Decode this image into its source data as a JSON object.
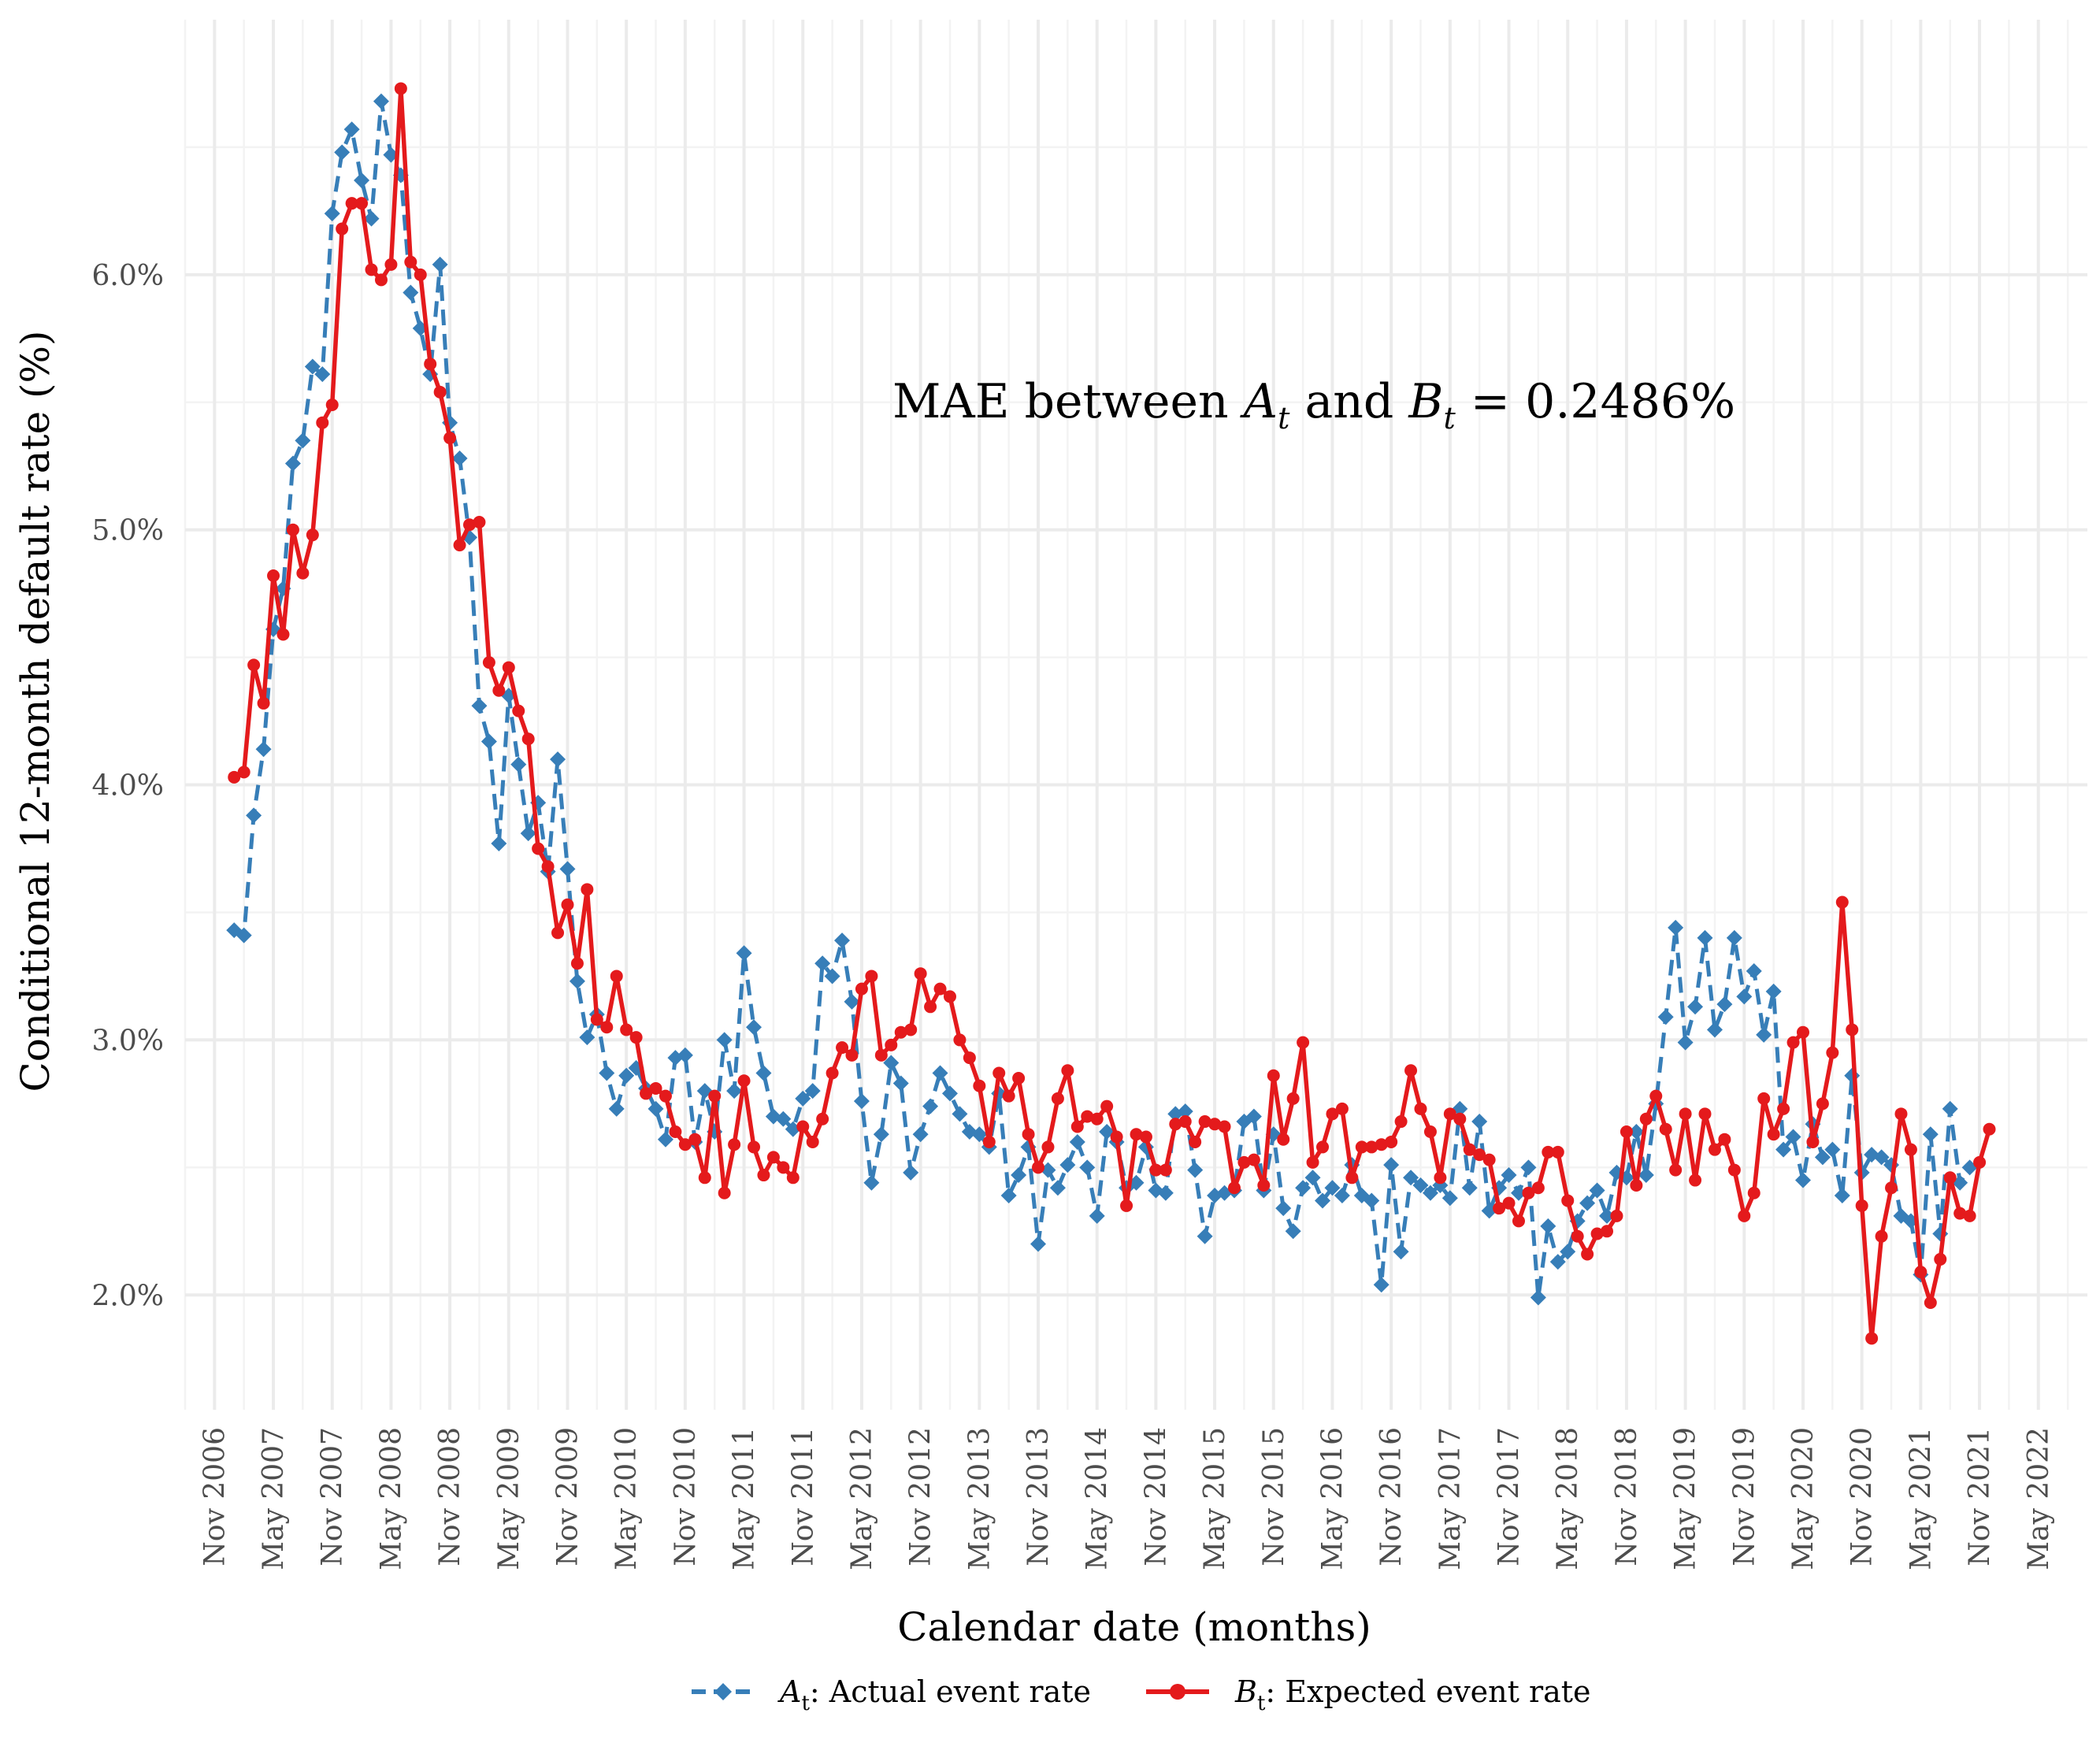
{
  "chart_data": {
    "type": "line",
    "title": "",
    "xlabel": "Calendar date (months)",
    "ylabel": "Conditional 12-month default rate (%)",
    "x_axis": {
      "type": "date",
      "range": [
        "2006-08",
        "2022-10"
      ],
      "tick_labels": [
        "Nov 2006",
        "May 2007",
        "Nov 2007",
        "May 2008",
        "Nov 2008",
        "May 2009",
        "Nov 2009",
        "May 2010",
        "Nov 2010",
        "May 2011",
        "Nov 2011",
        "May 2012",
        "Nov 2012",
        "May 2013",
        "Nov 2013",
        "May 2014",
        "Nov 2014",
        "May 2015",
        "Nov 2015",
        "May 2016",
        "Nov 2016",
        "May 2017",
        "Nov 2017",
        "May 2018",
        "Nov 2018",
        "May 2019",
        "Nov 2019",
        "May 2020",
        "Nov 2020",
        "May 2021",
        "Nov 2021",
        "May 2022"
      ],
      "tick_dates": [
        "2006-11",
        "2007-05",
        "2007-11",
        "2008-05",
        "2008-11",
        "2009-05",
        "2009-11",
        "2010-05",
        "2010-11",
        "2011-05",
        "2011-11",
        "2012-05",
        "2012-11",
        "2013-05",
        "2013-11",
        "2014-05",
        "2014-11",
        "2015-05",
        "2015-11",
        "2016-05",
        "2016-11",
        "2017-05",
        "2017-11",
        "2018-05",
        "2018-11",
        "2019-05",
        "2019-11",
        "2020-05",
        "2020-11",
        "2021-05",
        "2021-11",
        "2022-05"
      ]
    },
    "y_axis": {
      "range": [
        1.55,
        7.0
      ],
      "tick_values": [
        2.0,
        3.0,
        4.0,
        5.0,
        6.0
      ],
      "tick_labels": [
        "2.0%",
        "3.0%",
        "4.0%",
        "5.0%",
        "6.0%"
      ]
    },
    "grid": true,
    "legend_position": "bottom",
    "annotation": {
      "prefix": "MAE between ",
      "sym1": "A",
      "sub1": "t",
      "mid": " and ",
      "sym2": "B",
      "sub2": "t",
      "suffix": " = 0.2486%"
    },
    "start_date": "2007-01",
    "series": [
      {
        "name": "Actual event rate",
        "symbol": "A",
        "subscript": "t",
        "legend_suffix": ": Actual event rate",
        "color": "#377eb8",
        "dash": true,
        "marker": "diamond",
        "values": [
          3.43,
          3.41,
          3.88,
          4.14,
          4.61,
          4.77,
          5.26,
          5.35,
          5.64,
          5.61,
          6.24,
          6.48,
          6.57,
          6.37,
          6.22,
          6.68,
          6.47,
          6.39,
          5.93,
          5.79,
          5.61,
          6.04,
          5.42,
          5.28,
          4.97,
          4.31,
          4.17,
          3.77,
          4.35,
          4.08,
          3.81,
          3.93,
          3.66,
          4.1,
          3.67,
          3.23,
          3.01,
          3.1,
          2.87,
          2.73,
          2.86,
          2.89,
          2.81,
          2.73,
          2.61,
          2.93,
          2.94,
          2.6,
          2.8,
          2.64,
          3.0,
          2.8,
          3.34,
          3.05,
          2.87,
          2.7,
          2.69,
          2.65,
          2.77,
          2.8,
          3.3,
          3.25,
          3.39,
          3.15,
          2.76,
          2.44,
          2.63,
          2.91,
          2.83,
          2.48,
          2.63,
          2.74,
          2.87,
          2.79,
          2.71,
          2.64,
          2.63,
          2.58,
          2.79,
          2.39,
          2.47,
          2.58,
          2.2,
          2.49,
          2.42,
          2.51,
          2.6,
          2.5,
          2.31,
          2.64,
          2.6,
          2.42,
          2.44,
          2.58,
          2.41,
          2.4,
          2.71,
          2.72,
          2.49,
          2.23,
          2.39,
          2.4,
          2.41,
          2.68,
          2.7,
          2.41,
          2.63,
          2.34,
          2.25,
          2.42,
          2.46,
          2.37,
          2.42,
          2.39,
          2.51,
          2.39,
          2.37,
          2.04,
          2.51,
          2.17,
          2.46,
          2.43,
          2.4,
          2.43,
          2.38,
          2.73,
          2.42,
          2.68,
          2.33,
          2.42,
          2.47,
          2.4,
          2.5,
          1.99,
          2.27,
          2.13,
          2.17,
          2.29,
          2.36,
          2.41,
          2.31,
          2.48,
          2.46,
          2.64,
          2.47,
          2.75,
          3.09,
          3.44,
          2.99,
          3.13,
          3.4,
          3.04,
          3.14,
          3.4,
          3.17,
          3.27,
          3.02,
          3.19,
          2.57,
          2.62,
          2.45,
          2.67,
          2.54,
          2.57,
          2.39,
          2.86,
          2.48,
          2.55,
          2.54,
          2.51,
          2.31,
          2.29,
          2.08,
          2.63,
          2.24,
          2.73,
          2.44,
          2.5
        ]
      },
      {
        "name": "Expected event rate",
        "symbol": "B",
        "subscript": "t",
        "legend_suffix": ": Expected event rate",
        "color": "#e41a1c",
        "dash": false,
        "marker": "circle",
        "values": [
          4.03,
          4.05,
          4.47,
          4.32,
          4.82,
          4.59,
          5.0,
          4.83,
          4.98,
          5.42,
          5.49,
          6.18,
          6.28,
          6.28,
          6.02,
          5.98,
          6.04,
          6.73,
          6.05,
          6.0,
          5.65,
          5.54,
          5.36,
          4.94,
          5.02,
          5.03,
          4.48,
          4.37,
          4.46,
          4.29,
          4.18,
          3.75,
          3.68,
          3.42,
          3.53,
          3.3,
          3.59,
          3.08,
          3.05,
          3.25,
          3.04,
          3.01,
          2.79,
          2.81,
          2.78,
          2.64,
          2.59,
          2.61,
          2.46,
          2.78,
          2.4,
          2.59,
          2.84,
          2.58,
          2.47,
          2.54,
          2.5,
          2.46,
          2.66,
          2.6,
          2.69,
          2.87,
          2.97,
          2.94,
          3.2,
          3.25,
          2.94,
          2.98,
          3.03,
          3.04,
          3.26,
          3.13,
          3.2,
          3.17,
          3.0,
          2.93,
          2.82,
          2.6,
          2.87,
          2.78,
          2.85,
          2.63,
          2.5,
          2.58,
          2.77,
          2.88,
          2.66,
          2.7,
          2.69,
          2.74,
          2.62,
          2.35,
          2.63,
          2.62,
          2.49,
          2.49,
          2.67,
          2.68,
          2.6,
          2.68,
          2.67,
          2.66,
          2.42,
          2.52,
          2.53,
          2.43,
          2.86,
          2.61,
          2.77,
          2.99,
          2.52,
          2.58,
          2.71,
          2.73,
          2.46,
          2.58,
          2.58,
          2.59,
          2.6,
          2.68,
          2.88,
          2.73,
          2.64,
          2.46,
          2.71,
          2.69,
          2.57,
          2.55,
          2.53,
          2.34,
          2.36,
          2.29,
          2.4,
          2.42,
          2.56,
          2.56,
          2.37,
          2.23,
          2.16,
          2.24,
          2.25,
          2.31,
          2.64,
          2.43,
          2.69,
          2.78,
          2.65,
          2.49,
          2.71,
          2.45,
          2.71,
          2.57,
          2.61,
          2.49,
          2.31,
          2.4,
          2.77,
          2.63,
          2.73,
          2.99,
          3.03,
          2.6,
          2.75,
          2.95,
          3.54,
          3.04,
          2.35,
          1.83,
          2.23,
          2.42,
          2.71,
          2.57,
          2.09,
          1.97,
          2.14,
          2.46,
          2.32,
          2.31,
          2.52,
          2.65
        ]
      }
    ]
  }
}
